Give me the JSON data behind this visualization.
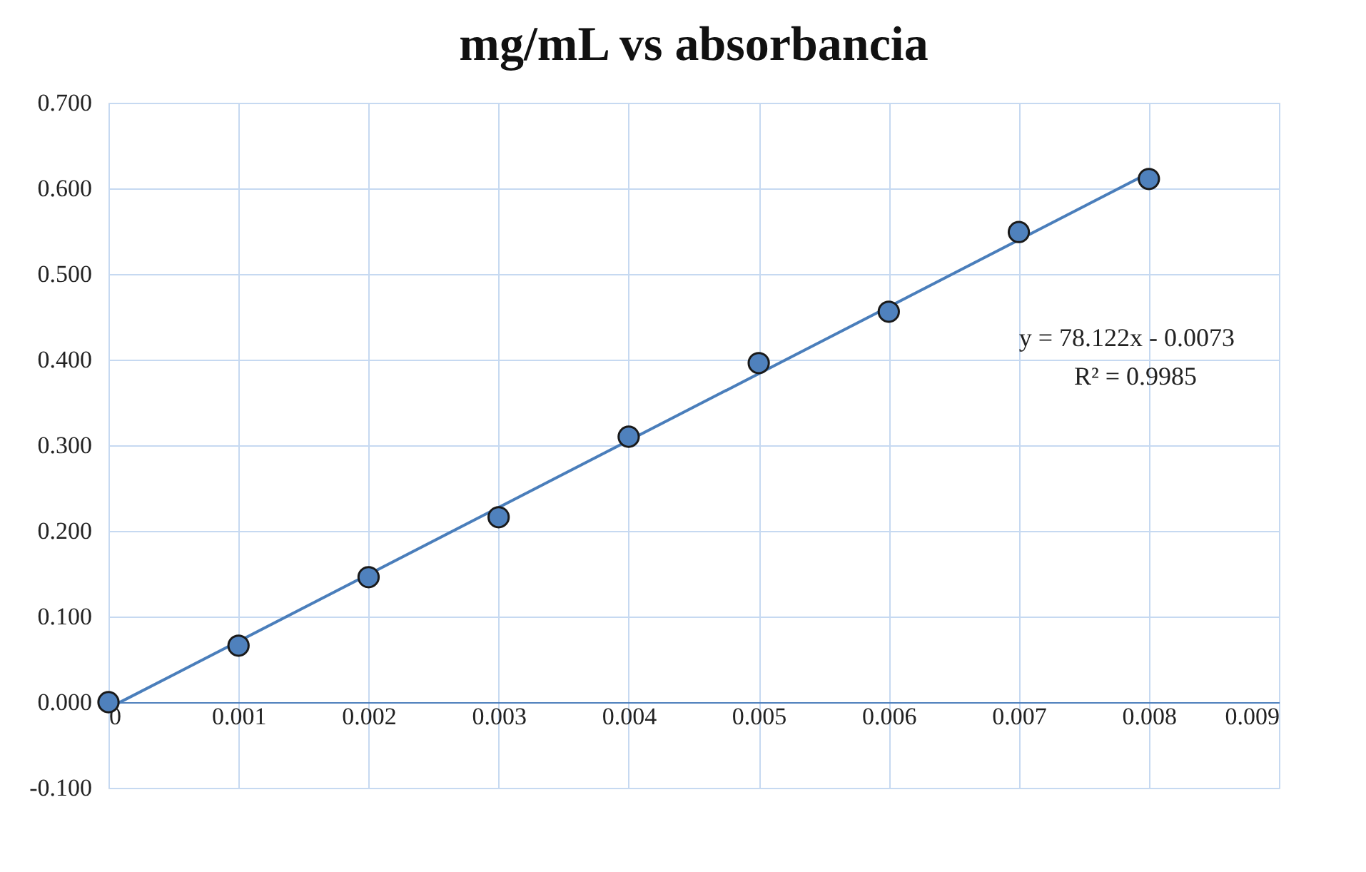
{
  "chart_data": {
    "type": "scatter",
    "title": "mg/mL vs absorbancia",
    "series": [
      {
        "color": "#4f81bd",
        "marker": "circle",
        "x": [
          0,
          0.001,
          0.002,
          0.003,
          0.004,
          0.005,
          0.006,
          0.007,
          0.008
        ],
        "values": [
          0.0,
          0.066,
          0.146,
          0.216,
          0.31,
          0.396,
          0.456,
          0.549,
          0.611
        ]
      },
      {
        "type": "line",
        "color": "#4a7ebb",
        "marker": "none",
        "line_style": "solid",
        "x": [
          0,
          0.008
        ],
        "values": [
          -0.007,
          0.618
        ]
      }
    ],
    "xlim": [
      0,
      0.009
    ],
    "xticks": [
      0,
      0.001,
      0.002,
      0.003,
      0.004,
      0.005,
      0.006,
      0.007,
      0.008,
      0.009
    ],
    "ylim": [
      -0.1,
      0.7
    ],
    "yticks": [
      {
        "value": -0.1,
        "label": "-0.100"
      },
      {
        "value": 0,
        "label": "0.000"
      },
      {
        "value": 0.1,
        "label": "0.100"
      },
      {
        "value": 0.2,
        "label": "0.200"
      },
      {
        "value": 0.3,
        "label": "0.300"
      },
      {
        "value": 0.4,
        "label": "0.400"
      },
      {
        "value": 0.5,
        "label": "0.500"
      },
      {
        "value": 0.6,
        "label": "0.600"
      },
      {
        "value": 0.7,
        "label": "0.700"
      }
    ],
    "annotations": [
      "y = 78.122x - 0.0073",
      "R² = 0.9985"
    ],
    "grid": true
  }
}
